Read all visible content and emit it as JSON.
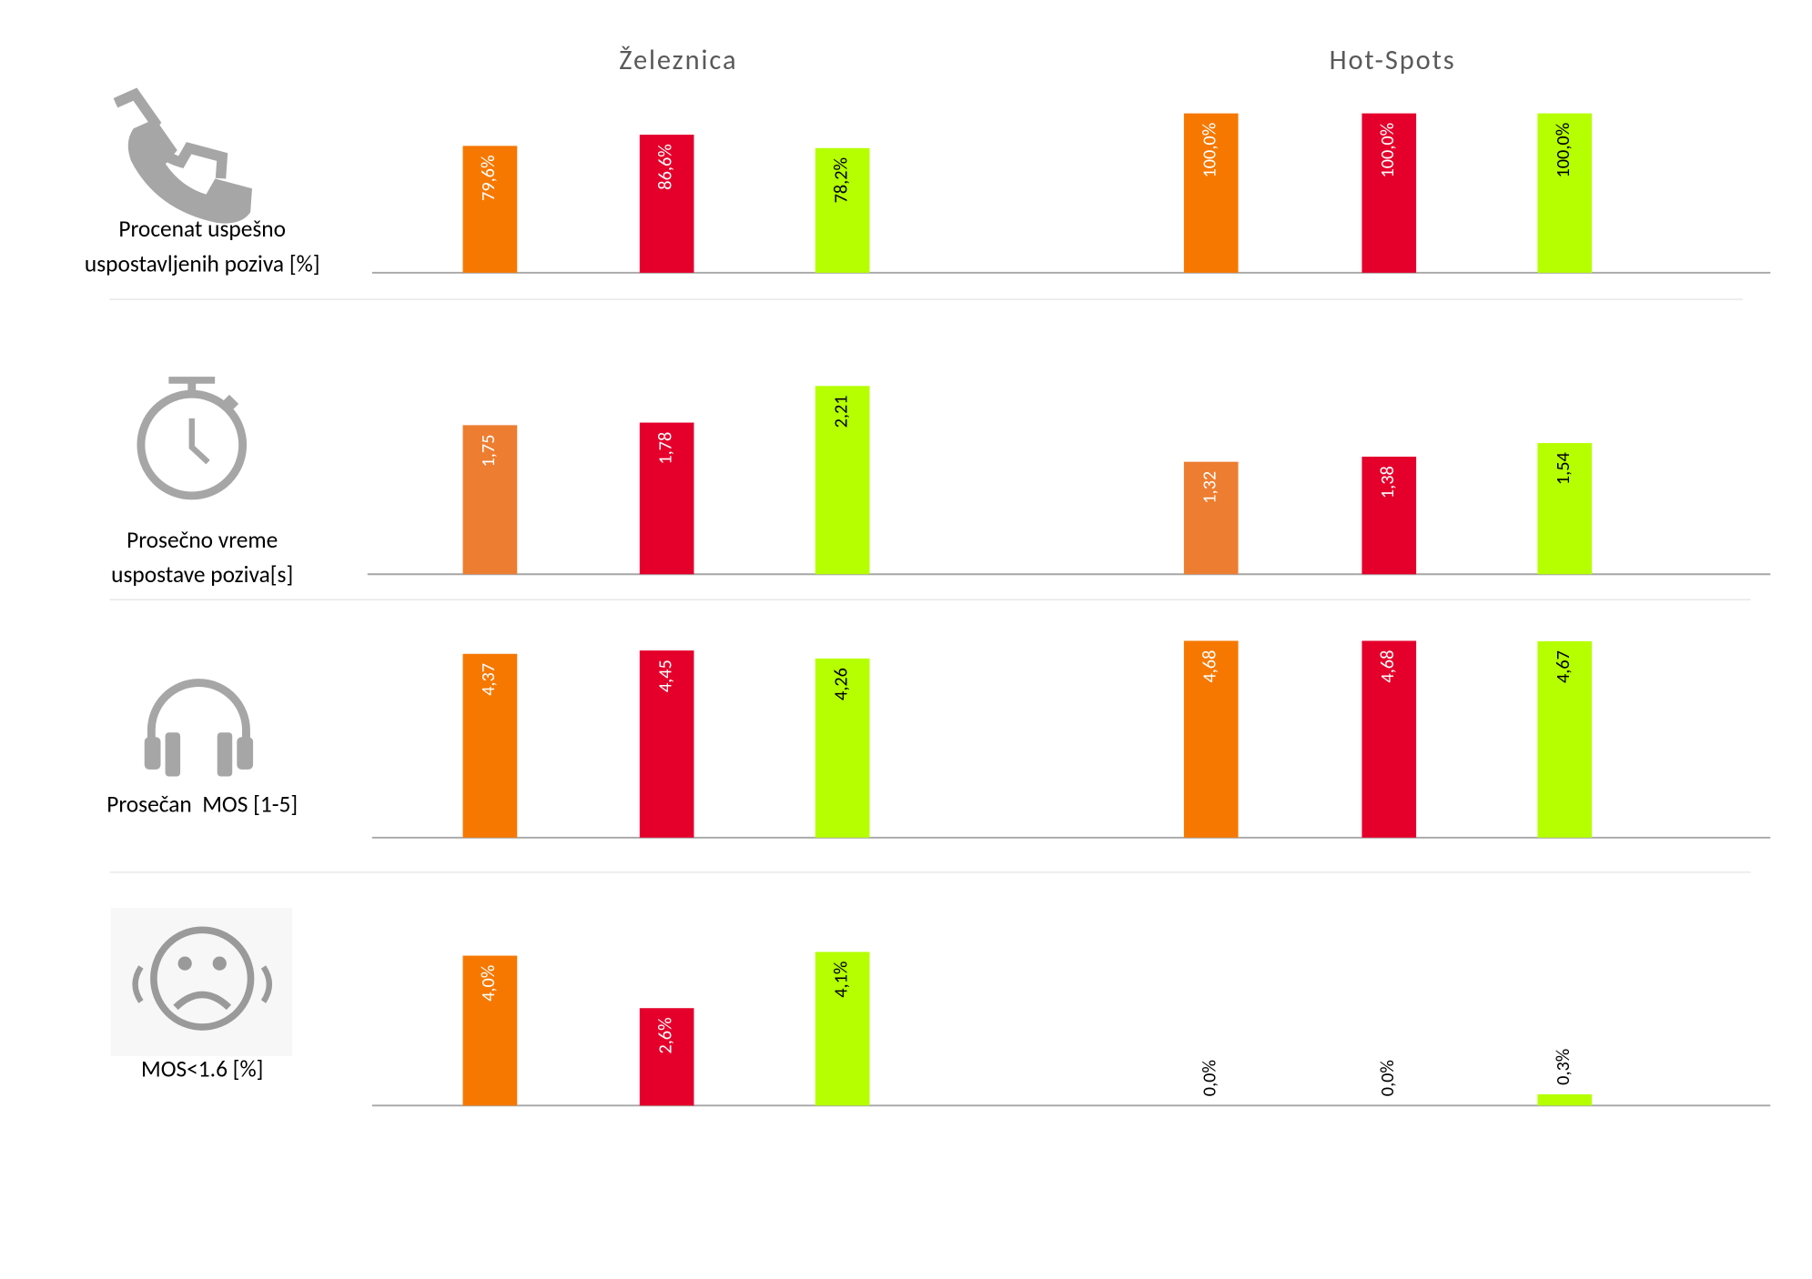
{
  "groups": [
    "Železnica",
    "Hot-Spots"
  ],
  "chart_data": [
    {
      "type": "bar",
      "title": [
        "Procenat uspešno",
        "uspostavljenih poziva [%]"
      ],
      "ylim": [
        0,
        100
      ],
      "series": [
        {
          "color": "#f67800",
          "values": [
            79.6,
            100.0
          ],
          "value_labels": [
            "79,6%",
            "100,0%"
          ]
        },
        {
          "color": "#e4002b",
          "values": [
            86.6,
            100.0
          ],
          "value_labels": [
            "86,6%",
            "100,0%"
          ]
        },
        {
          "color": "#b5ff00",
          "values": [
            78.2,
            100.0
          ],
          "value_labels": [
            "78,2%",
            "100,0%"
          ]
        }
      ]
    },
    {
      "type": "bar",
      "title": [
        "Prosečno vreme",
        "uspostave poziva[s]"
      ],
      "ylim": [
        0,
        2.4
      ],
      "series": [
        {
          "color": "#ed7d31",
          "values": [
            1.75,
            1.32
          ],
          "value_labels": [
            "1,75",
            "1,32"
          ]
        },
        {
          "color": "#e4002b",
          "values": [
            1.78,
            1.38
          ],
          "value_labels": [
            "1,78",
            "1,38"
          ]
        },
        {
          "color": "#b5ff00",
          "values": [
            2.21,
            1.54
          ],
          "value_labels": [
            "2,21",
            "1,54"
          ]
        }
      ]
    },
    {
      "type": "bar",
      "title": [
        "Prosečan  MOS [1-5]"
      ],
      "ylim": [
        0,
        5
      ],
      "series": [
        {
          "color": "#f67800",
          "values": [
            4.37,
            4.68
          ],
          "value_labels": [
            "4,37",
            "4,68"
          ]
        },
        {
          "color": "#e4002b",
          "values": [
            4.45,
            4.68
          ],
          "value_labels": [
            "4,45",
            "4,68"
          ]
        },
        {
          "color": "#b5ff00",
          "values": [
            4.26,
            4.67
          ],
          "value_labels": [
            "4,26",
            "4,67"
          ]
        }
      ]
    },
    {
      "type": "bar",
      "title": [
        "MOS<1.6 [%]"
      ],
      "ylim": [
        0,
        4.5
      ],
      "series": [
        {
          "color": "#f67800",
          "values": [
            4.0,
            0.0
          ],
          "value_labels": [
            "4,0%",
            "0,0%"
          ]
        },
        {
          "color": "#e4002b",
          "values": [
            2.6,
            0.0
          ],
          "value_labels": [
            "2,6%",
            "0,0%"
          ]
        },
        {
          "color": "#b5ff00",
          "values": [
            4.1,
            0.3
          ],
          "value_labels": [
            "4,1%",
            "0,3%"
          ]
        }
      ]
    }
  ]
}
